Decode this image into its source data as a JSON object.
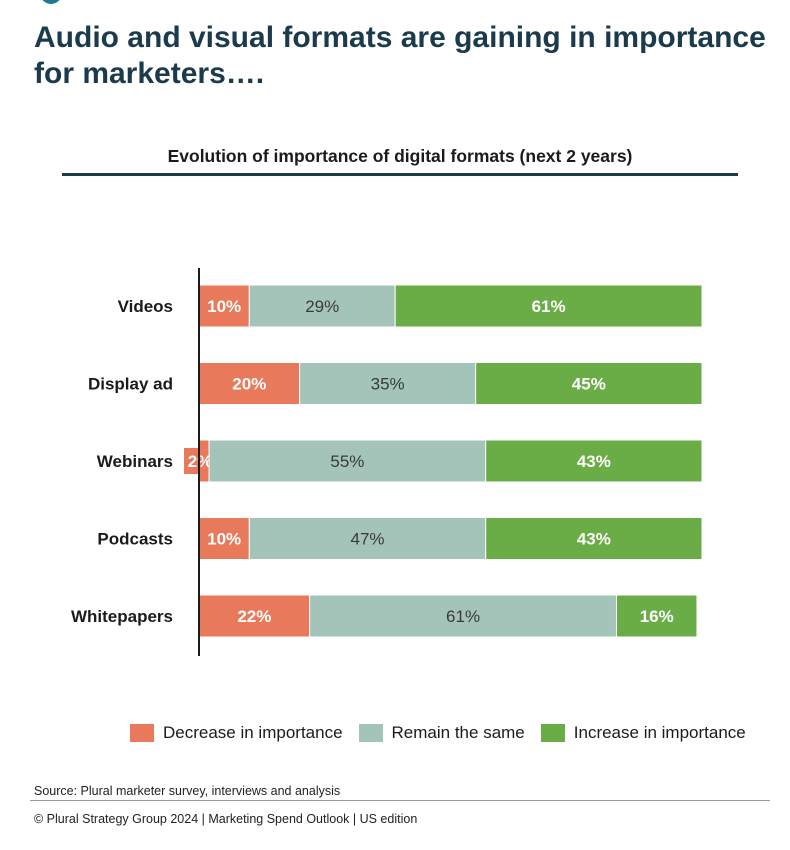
{
  "page": {
    "title": "Audio and visual formats are gaining in importance for marketers….",
    "source": "Source: Plural marketer survey, interviews and analysis",
    "footer": "© Plural Strategy Group 2024 | Marketing Spend Outlook | US edition"
  },
  "chart_data": {
    "type": "bar",
    "orientation": "horizontal",
    "stacked": true,
    "title": "Evolution of importance of digital formats (next 2 years)",
    "categories": [
      "Videos",
      "Display ad",
      "Webinars",
      "Podcasts",
      "Whitepapers"
    ],
    "series": [
      {
        "name": "Decrease in importance",
        "values": [
          10,
          20,
          2,
          10,
          22
        ],
        "color": "#e8795a"
      },
      {
        "name": "Remain the same",
        "values": [
          29,
          35,
          55,
          47,
          61
        ],
        "color": "#a5c4b9"
      },
      {
        "name": "Increase in importance",
        "values": [
          61,
          45,
          43,
          43,
          16
        ],
        "color": "#6aac46"
      }
    ],
    "value_suffix": "%",
    "legend_position": "bottom",
    "grid": false
  }
}
